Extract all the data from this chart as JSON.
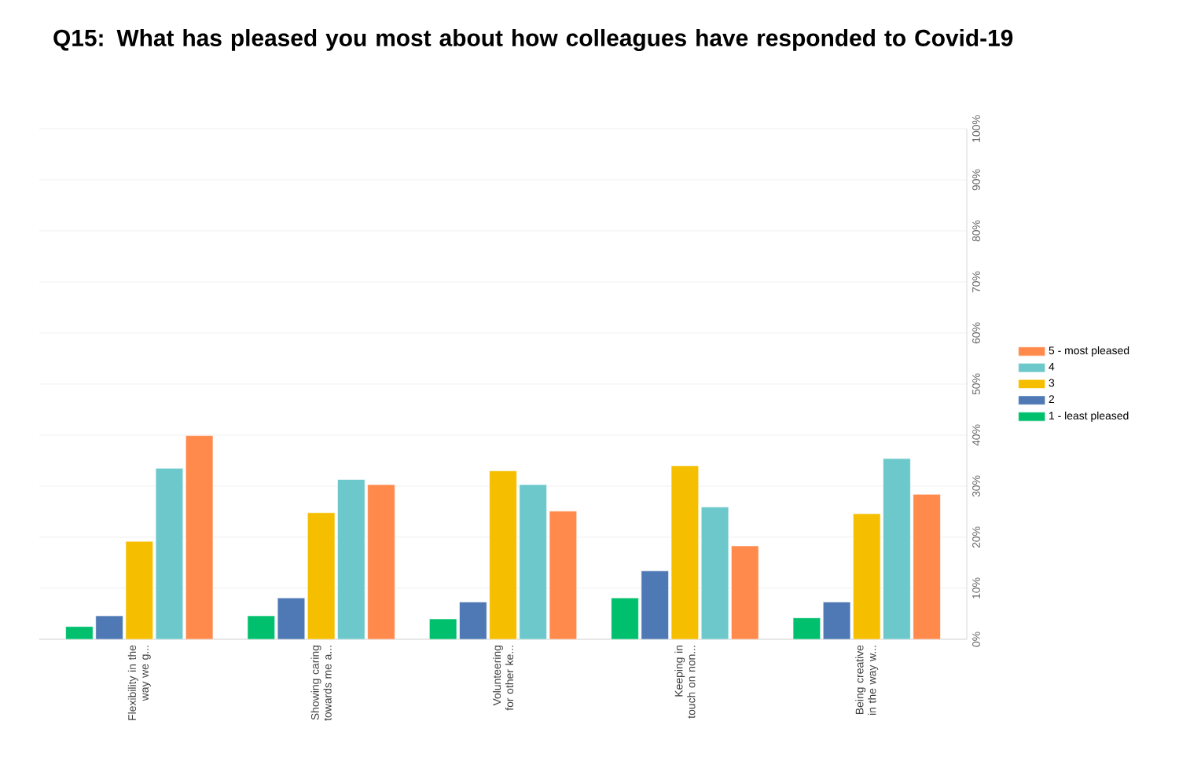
{
  "chart_data": {
    "type": "bar",
    "title": "Q15: What has pleased you most about how colleagues have responded to Covid-19",
    "categories": [
      "Flexibility in the way we g...",
      "Showing caring towards me a...",
      "Volunteering for other ke...",
      "Keeping in touch on non...",
      "Being creative in the way w..."
    ],
    "series": [
      {
        "name": "1 - least pleased",
        "color": "#00c06e",
        "values": [
          2.5,
          4.6,
          4.0,
          8.1,
          4.2
        ]
      },
      {
        "name": "2",
        "color": "#4e79b4",
        "values": [
          4.6,
          8.1,
          7.3,
          13.4,
          7.3
        ]
      },
      {
        "name": "3",
        "color": "#f5bf00",
        "values": [
          19.2,
          24.8,
          33.0,
          34.0,
          24.6
        ]
      },
      {
        "name": "4",
        "color": "#6cc8cb",
        "values": [
          33.5,
          31.3,
          30.3,
          25.9,
          35.4
        ]
      },
      {
        "name": "5 - most pleased",
        "color": "#ff8a4c",
        "values": [
          39.9,
          30.3,
          25.1,
          18.3,
          28.4
        ]
      }
    ],
    "ylim": [
      0,
      100
    ],
    "yticks": [
      {
        "value": 0,
        "label": "0%"
      },
      {
        "value": 10,
        "label": "10%"
      },
      {
        "value": 20,
        "label": "20%"
      },
      {
        "value": 30,
        "label": "30%"
      },
      {
        "value": 40,
        "label": "40%"
      },
      {
        "value": 50,
        "label": "50%"
      },
      {
        "value": 60,
        "label": "60%"
      },
      {
        "value": 70,
        "label": "70%"
      },
      {
        "value": 80,
        "label": "80%"
      },
      {
        "value": 90,
        "label": "90%"
      },
      {
        "value": 100,
        "label": "100%"
      }
    ],
    "grid": "y",
    "legend": "right"
  }
}
